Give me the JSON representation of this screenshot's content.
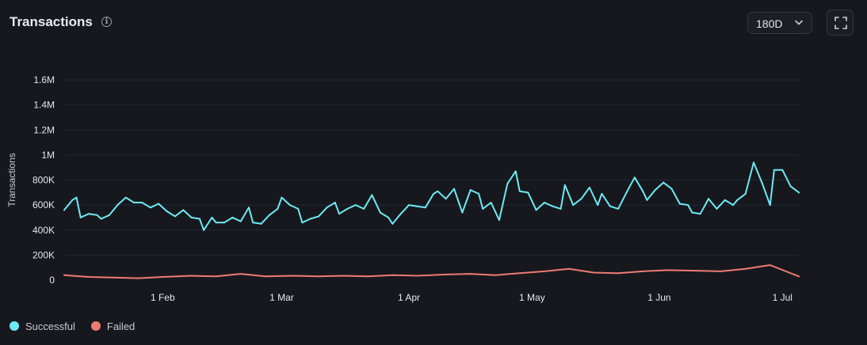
{
  "header": {
    "title": "Transactions",
    "info_icon": "info-icon",
    "range_value": "180D",
    "range_icon": "chevron-down-icon",
    "expand_icon": "expand-icon"
  },
  "colors": {
    "background": "#16181d",
    "successful": "#6eeaf4",
    "failed": "#ee7b72",
    "grid": "#1f2a3b",
    "tick_text": "#e6e8eb"
  },
  "legend": [
    {
      "label": "Successful",
      "color": "#6eeaf4"
    },
    {
      "label": "Failed",
      "color": "#ee7b72"
    }
  ],
  "chart_data": {
    "type": "line",
    "title": "Transactions",
    "xlabel": "",
    "ylabel": "Transactions",
    "ylim": [
      0,
      1600000
    ],
    "y_ticks": [
      0,
      200000,
      400000,
      600000,
      800000,
      1000000,
      1200000,
      1400000,
      1600000
    ],
    "y_tick_labels": [
      "0",
      "200K",
      "400K",
      "600K",
      "800K",
      "1M",
      "1.2M",
      "1.4M",
      "1.6M"
    ],
    "x_range": [
      "2024-01-08",
      "2024-07-05"
    ],
    "x_ticks": [
      "2024-02-01",
      "2024-03-01",
      "2024-04-01",
      "2024-05-01",
      "2024-06-01",
      "2024-07-01"
    ],
    "x_tick_labels": [
      "1 Feb",
      "1 Mar",
      "1 Apr",
      "1 May",
      "1 Jun",
      "1 Jul"
    ],
    "grid": "horizontal",
    "legend_position": "bottom-left",
    "series": [
      {
        "name": "Successful",
        "color": "#6eeaf4",
        "points": [
          [
            "2024-01-08",
            560000
          ],
          [
            "2024-01-10",
            640000
          ],
          [
            "2024-01-11",
            660000
          ],
          [
            "2024-01-12",
            500000
          ],
          [
            "2024-01-14",
            530000
          ],
          [
            "2024-01-16",
            520000
          ],
          [
            "2024-01-17",
            490000
          ],
          [
            "2024-01-19",
            520000
          ],
          [
            "2024-01-21",
            600000
          ],
          [
            "2024-01-23",
            660000
          ],
          [
            "2024-01-25",
            620000
          ],
          [
            "2024-01-27",
            620000
          ],
          [
            "2024-01-29",
            580000
          ],
          [
            "2024-01-31",
            610000
          ],
          [
            "2024-02-02",
            550000
          ],
          [
            "2024-02-04",
            510000
          ],
          [
            "2024-02-06",
            560000
          ],
          [
            "2024-02-08",
            500000
          ],
          [
            "2024-02-10",
            490000
          ],
          [
            "2024-02-11",
            400000
          ],
          [
            "2024-02-13",
            500000
          ],
          [
            "2024-02-14",
            460000
          ],
          [
            "2024-02-16",
            460000
          ],
          [
            "2024-02-18",
            500000
          ],
          [
            "2024-02-20",
            470000
          ],
          [
            "2024-02-22",
            580000
          ],
          [
            "2024-02-23",
            460000
          ],
          [
            "2024-02-25",
            450000
          ],
          [
            "2024-02-27",
            520000
          ],
          [
            "2024-02-29",
            570000
          ],
          [
            "2024-03-01",
            660000
          ],
          [
            "2024-03-03",
            600000
          ],
          [
            "2024-03-05",
            570000
          ],
          [
            "2024-03-06",
            460000
          ],
          [
            "2024-03-08",
            490000
          ],
          [
            "2024-03-10",
            510000
          ],
          [
            "2024-03-12",
            580000
          ],
          [
            "2024-03-14",
            620000
          ],
          [
            "2024-03-15",
            530000
          ],
          [
            "2024-03-17",
            570000
          ],
          [
            "2024-03-19",
            600000
          ],
          [
            "2024-03-21",
            570000
          ],
          [
            "2024-03-23",
            680000
          ],
          [
            "2024-03-25",
            540000
          ],
          [
            "2024-03-27",
            500000
          ],
          [
            "2024-03-28",
            450000
          ],
          [
            "2024-03-30",
            530000
          ],
          [
            "2024-04-01",
            600000
          ],
          [
            "2024-04-03",
            590000
          ],
          [
            "2024-04-05",
            580000
          ],
          [
            "2024-04-07",
            690000
          ],
          [
            "2024-04-08",
            710000
          ],
          [
            "2024-04-10",
            650000
          ],
          [
            "2024-04-12",
            730000
          ],
          [
            "2024-04-14",
            540000
          ],
          [
            "2024-04-16",
            720000
          ],
          [
            "2024-04-18",
            690000
          ],
          [
            "2024-04-19",
            570000
          ],
          [
            "2024-04-21",
            620000
          ],
          [
            "2024-04-23",
            480000
          ],
          [
            "2024-04-25",
            770000
          ],
          [
            "2024-04-27",
            870000
          ],
          [
            "2024-04-28",
            710000
          ],
          [
            "2024-04-30",
            700000
          ],
          [
            "2024-05-02",
            560000
          ],
          [
            "2024-05-04",
            620000
          ],
          [
            "2024-05-06",
            590000
          ],
          [
            "2024-05-08",
            570000
          ],
          [
            "2024-05-09",
            760000
          ],
          [
            "2024-05-11",
            600000
          ],
          [
            "2024-05-13",
            650000
          ],
          [
            "2024-05-15",
            740000
          ],
          [
            "2024-05-17",
            600000
          ],
          [
            "2024-05-18",
            690000
          ],
          [
            "2024-05-20",
            590000
          ],
          [
            "2024-05-22",
            570000
          ],
          [
            "2024-05-24",
            700000
          ],
          [
            "2024-05-26",
            820000
          ],
          [
            "2024-05-28",
            710000
          ],
          [
            "2024-05-29",
            640000
          ],
          [
            "2024-05-31",
            720000
          ],
          [
            "2024-06-02",
            780000
          ],
          [
            "2024-06-04",
            730000
          ],
          [
            "2024-06-06",
            610000
          ],
          [
            "2024-06-08",
            600000
          ],
          [
            "2024-06-09",
            540000
          ],
          [
            "2024-06-11",
            530000
          ],
          [
            "2024-06-13",
            650000
          ],
          [
            "2024-06-15",
            570000
          ],
          [
            "2024-06-17",
            640000
          ],
          [
            "2024-06-19",
            600000
          ],
          [
            "2024-06-20",
            640000
          ],
          [
            "2024-06-22",
            690000
          ],
          [
            "2024-06-24",
            940000
          ],
          [
            "2024-06-26",
            780000
          ],
          [
            "2024-06-28",
            600000
          ],
          [
            "2024-06-29",
            880000
          ],
          [
            "2024-07-01",
            880000
          ],
          [
            "2024-07-03",
            750000
          ],
          [
            "2024-07-05",
            700000
          ]
        ]
      },
      {
        "name": "Failed",
        "color": "#ee7b72",
        "points": [
          [
            "2024-01-08",
            40000
          ],
          [
            "2024-01-14",
            25000
          ],
          [
            "2024-01-20",
            20000
          ],
          [
            "2024-01-26",
            15000
          ],
          [
            "2024-02-01",
            25000
          ],
          [
            "2024-02-08",
            35000
          ],
          [
            "2024-02-14",
            30000
          ],
          [
            "2024-02-20",
            50000
          ],
          [
            "2024-02-26",
            30000
          ],
          [
            "2024-03-04",
            35000
          ],
          [
            "2024-03-10",
            30000
          ],
          [
            "2024-03-16",
            35000
          ],
          [
            "2024-03-22",
            30000
          ],
          [
            "2024-03-28",
            40000
          ],
          [
            "2024-04-03",
            35000
          ],
          [
            "2024-04-10",
            45000
          ],
          [
            "2024-04-16",
            50000
          ],
          [
            "2024-04-22",
            40000
          ],
          [
            "2024-04-28",
            55000
          ],
          [
            "2024-05-04",
            70000
          ],
          [
            "2024-05-10",
            90000
          ],
          [
            "2024-05-16",
            60000
          ],
          [
            "2024-05-22",
            55000
          ],
          [
            "2024-05-28",
            70000
          ],
          [
            "2024-06-03",
            80000
          ],
          [
            "2024-06-10",
            75000
          ],
          [
            "2024-06-16",
            70000
          ],
          [
            "2024-06-22",
            90000
          ],
          [
            "2024-06-28",
            120000
          ],
          [
            "2024-07-05",
            30000
          ]
        ]
      }
    ]
  }
}
